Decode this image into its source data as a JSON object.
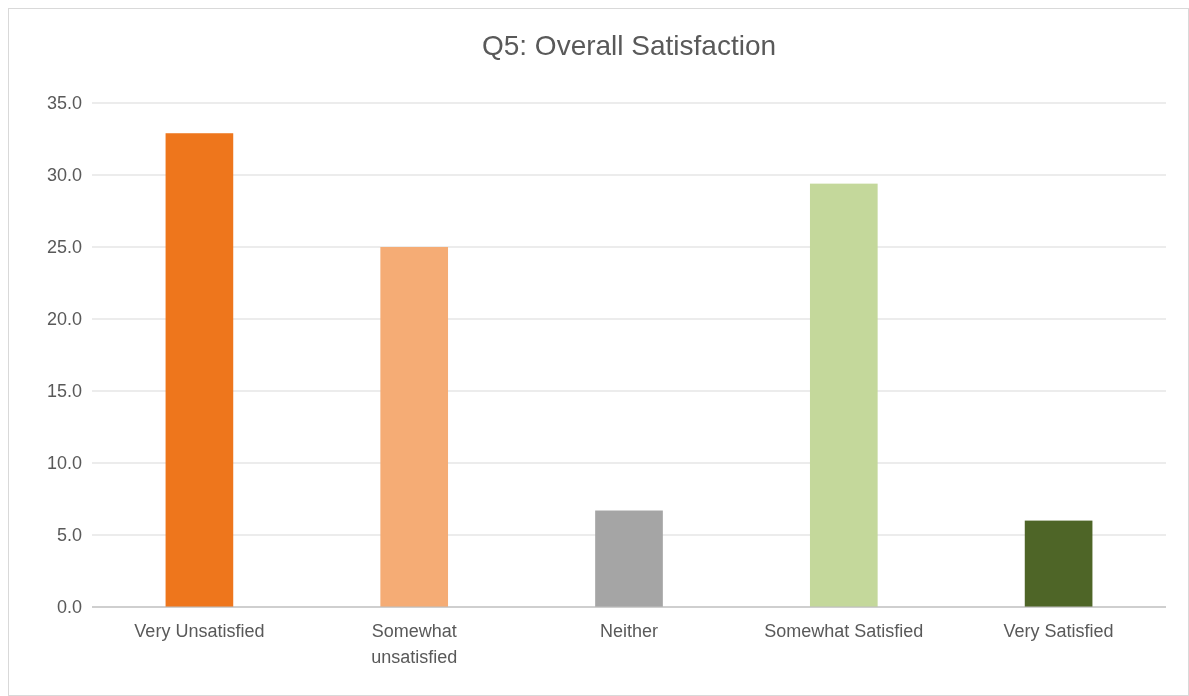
{
  "chart_data": {
    "type": "bar",
    "title": "Q5: Overall Satisfaction",
    "categories": [
      "Very Unsatisfied",
      "Somewhat unsatisfied",
      "Neither",
      "Somewhat Satisfied",
      "Very Satisfied"
    ],
    "values": [
      32.9,
      25.0,
      6.7,
      29.4,
      6.0
    ],
    "colors": [
      "#ee761c",
      "#f5ac75",
      "#a5a5a5",
      "#c4d89b",
      "#4e6527"
    ],
    "ylim": [
      0,
      35
    ],
    "yticks": [
      {
        "value": 0,
        "label": "0.0"
      },
      {
        "value": 5,
        "label": "5.0"
      },
      {
        "value": 10,
        "label": "10.0"
      },
      {
        "value": 15,
        "label": "15.0"
      },
      {
        "value": 20,
        "label": "20.0"
      },
      {
        "value": 25,
        "label": "25.0"
      },
      {
        "value": 30,
        "label": "30.0"
      },
      {
        "value": 35,
        "label": "35.0"
      }
    ],
    "grid": "y"
  }
}
